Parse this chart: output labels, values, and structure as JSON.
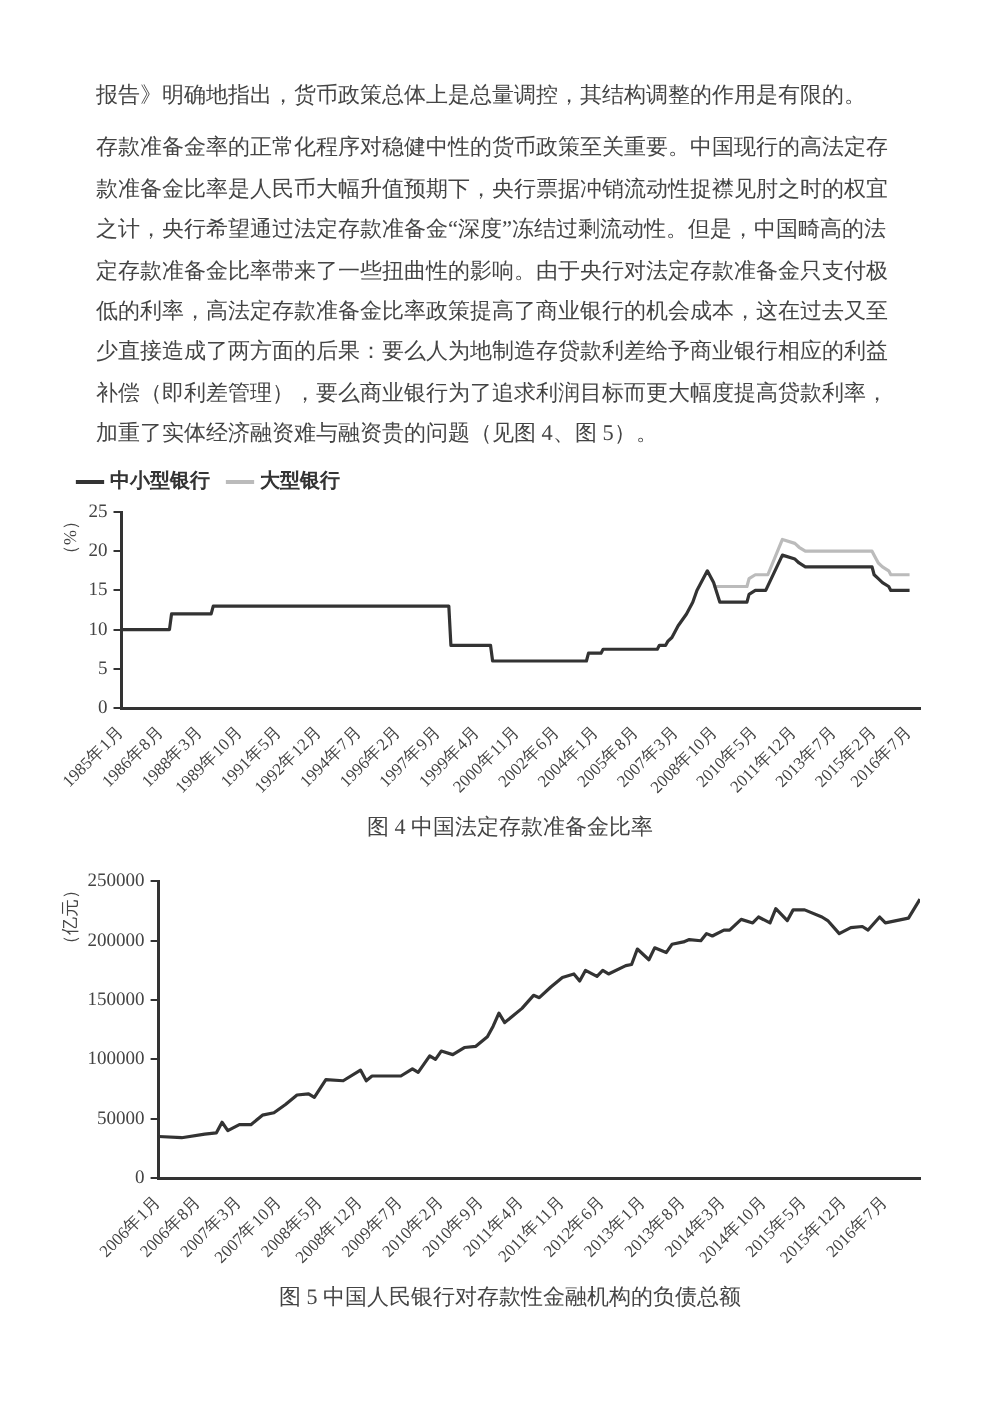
{
  "chart_data": [
    {
      "type": "line",
      "title": "图 4  中国法定存款准备金比率",
      "annotations": [
        "报告》明确地指出，货币政策总体上是总量调控，其结构调整的作用是有限的。",
        "存款准备金率的正常化程序对稳健中性的货币政策至关重要。中国现行的高法定存款准备金比率是人民币大幅升值预期下，央行票据冲销流动性捉襟见肘之时的权宜之计，央行希望通过法定存款准备金“深度”冻结过剩流动性。但是，中国畸高的法定存款准备金比率带来了一些扭曲性的影响。由于央行对法定存款准备金只支付极低的利率，高法定存款准备金比率政策提高了商业银行的机会成本，这在过去又至少直接造成了两方面的后果：要么人为地制造存贷款利差给予商业银行相应的利益补偿（即利差管理），要么商业银行为了追求利润目标而更大幅度提高贷款利率，加重了实体经济融资难与融资贵的问题（见图 4、图 5）。"
      ],
      "ylabel": "（%）",
      "legend": "top left",
      "marker": "none",
      "line_style": "solid",
      "xlim": [
        "1985-01",
        "2016-12"
      ],
      "ylim": [
        0,
        25
      ],
      "yticks": [
        0,
        5,
        10,
        15,
        20,
        25
      ],
      "xticks": [
        {
          "value": "1985-01",
          "label": "1985年1月"
        },
        {
          "value": "1986-08",
          "label": "1986年8月"
        },
        {
          "value": "1988-03",
          "label": "1988年3月"
        },
        {
          "value": "1989-10",
          "label": "1989年10月"
        },
        {
          "value": "1991-05",
          "label": "1991年5月"
        },
        {
          "value": "1992-12",
          "label": "1992年12月"
        },
        {
          "value": "1994-07",
          "label": "1994年7月"
        },
        {
          "value": "1996-02",
          "label": "1996年2月"
        },
        {
          "value": "1997-09",
          "label": "1997年9月"
        },
        {
          "value": "1999-04",
          "label": "1999年4月"
        },
        {
          "value": "2000-11",
          "label": "2000年11月"
        },
        {
          "value": "2002-06",
          "label": "2002年6月"
        },
        {
          "value": "2004-01",
          "label": "2004年1月"
        },
        {
          "value": "2005-08",
          "label": "2005年8月"
        },
        {
          "value": "2007-03",
          "label": "2007年3月"
        },
        {
          "value": "2008-10",
          "label": "2008年10月"
        },
        {
          "value": "2010-05",
          "label": "2010年5月"
        },
        {
          "value": "2011-12",
          "label": "2011年12月"
        },
        {
          "value": "2013-07",
          "label": "2013年7月"
        },
        {
          "value": "2015-02",
          "label": "2015年2月"
        },
        {
          "value": "2016-07",
          "label": "2016年7月"
        }
      ],
      "series": [
        {
          "name": "中小型银行",
          "color": "#333333",
          "x": [
            "1985-01",
            "1986-12",
            "1987-01",
            "1988-08",
            "1988-09",
            "1998-02",
            "1998-03",
            "1999-10",
            "1999-11",
            "2003-08",
            "2003-09",
            "2004-03",
            "2004-04",
            "2006-06",
            "2006-07",
            "2006-10",
            "2006-11",
            "2007-01",
            "2007-04",
            "2007-08",
            "2007-11",
            "2008-01",
            "2008-06",
            "2008-09",
            "2008-12",
            "2010-01",
            "2010-02",
            "2010-05",
            "2010-10",
            "2011-06",
            "2011-12",
            "2012-02",
            "2012-05",
            "2015-01",
            "2015-02",
            "2015-04",
            "2015-06",
            "2015-09",
            "2015-10",
            "2016-07"
          ],
          "values": [
            10,
            10,
            12,
            12,
            13,
            13,
            8,
            8,
            6,
            6,
            7,
            7,
            7.5,
            7.5,
            8,
            8,
            8.5,
            9,
            10.5,
            12,
            13.5,
            15,
            17.5,
            16,
            13.5,
            13.5,
            14.5,
            15,
            15,
            19.5,
            19,
            18.5,
            18,
            18,
            17,
            16.5,
            16,
            15.5,
            15,
            15
          ]
        },
        {
          "name": "大型银行",
          "color": "#bbbbbb",
          "x": [
            "2008-09",
            "2010-01",
            "2010-02",
            "2010-05",
            "2010-11",
            "2011-06",
            "2011-12",
            "2012-02",
            "2012-05",
            "2015-01",
            "2015-02",
            "2015-04",
            "2015-06",
            "2015-09",
            "2015-10",
            "2016-07"
          ],
          "values": [
            15.5,
            15.5,
            16.5,
            17,
            17,
            21.5,
            21,
            20.5,
            20,
            20,
            19.5,
            18.5,
            18,
            17.5,
            17,
            17
          ]
        }
      ]
    },
    {
      "type": "line",
      "title": "图 5  中国人民银行对存款性金融机构的负债总额",
      "ylabel": "（亿元）",
      "marker": "none",
      "line_style": "solid",
      "xlim": [
        "2006-01",
        "2017-01"
      ],
      "ylim": [
        0,
        250000
      ],
      "yticks": [
        0,
        50000,
        100000,
        150000,
        200000,
        250000
      ],
      "xticks": [
        {
          "value": "2006-01",
          "label": "2006年1月"
        },
        {
          "value": "2006-08",
          "label": "2006年8月"
        },
        {
          "value": "2007-03",
          "label": "2007年3月"
        },
        {
          "value": "2007-10",
          "label": "2007年10月"
        },
        {
          "value": "2008-05",
          "label": "2008年5月"
        },
        {
          "value": "2008-12",
          "label": "2008年12月"
        },
        {
          "value": "2009-07",
          "label": "2009年7月"
        },
        {
          "value": "2010-02",
          "label": "2010年2月"
        },
        {
          "value": "2010-09",
          "label": "2010年9月"
        },
        {
          "value": "2011-04",
          "label": "2011年4月"
        },
        {
          "value": "2011-11",
          "label": "2011年11月"
        },
        {
          "value": "2012-06",
          "label": "2012年6月"
        },
        {
          "value": "2013-01",
          "label": "2013年1月"
        },
        {
          "value": "2013-08",
          "label": "2013年8月"
        },
        {
          "value": "2014-03",
          "label": "2014年3月"
        },
        {
          "value": "2014-10",
          "label": "2014年10月"
        },
        {
          "value": "2015-05",
          "label": "2015年5月"
        },
        {
          "value": "2015-12",
          "label": "2015年12月"
        },
        {
          "value": "2016-07",
          "label": "2016年7月"
        }
      ],
      "series": [
        {
          "color": "#333333",
          "x": [
            "2006-01",
            "2006-05",
            "2006-09",
            "2006-11",
            "2006-12",
            "2007-01",
            "2007-03",
            "2007-05",
            "2007-07",
            "2007-09",
            "2007-11",
            "2008-01",
            "2008-03",
            "2008-04",
            "2008-06",
            "2008-09",
            "2008-12",
            "2009-01",
            "2009-02",
            "2009-07",
            "2009-09",
            "2009-10",
            "2009-12",
            "2010-01",
            "2010-02",
            "2010-04",
            "2010-06",
            "2010-08",
            "2010-10",
            "2010-11",
            "2010-12",
            "2011-01",
            "2011-04",
            "2011-06",
            "2011-07",
            "2011-09",
            "2011-11",
            "2012-01",
            "2012-02",
            "2012-03",
            "2012-05",
            "2012-06",
            "2012-07",
            "2012-10",
            "2012-11",
            "2012-12",
            "2013-02",
            "2013-03",
            "2013-05",
            "2013-06",
            "2013-08",
            "2013-09",
            "2013-11",
            "2013-12",
            "2014-01",
            "2014-03",
            "2014-04",
            "2014-06",
            "2014-08",
            "2014-09",
            "2014-11",
            "2014-12",
            "2015-02",
            "2015-03",
            "2015-05",
            "2015-08",
            "2015-09",
            "2015-11",
            "2016-01",
            "2016-03",
            "2016-04",
            "2016-06",
            "2016-07",
            "2016-11",
            "2017-01"
          ],
          "values": [
            35000,
            34000,
            37000,
            38000,
            47000,
            40000,
            45000,
            45000,
            53000,
            55000,
            62000,
            70000,
            71000,
            68000,
            83000,
            82000,
            91000,
            82000,
            86000,
            86000,
            92000,
            89000,
            103000,
            100000,
            107000,
            104000,
            110000,
            111000,
            119000,
            128000,
            139000,
            131000,
            143000,
            154000,
            152000,
            161000,
            169000,
            172000,
            166000,
            175000,
            170000,
            175000,
            172000,
            179000,
            180000,
            193000,
            184000,
            194000,
            190000,
            197000,
            199000,
            201000,
            200000,
            206000,
            204000,
            209000,
            209000,
            218000,
            215000,
            220000,
            215000,
            227000,
            217000,
            226000,
            226000,
            220000,
            217000,
            206000,
            211000,
            212000,
            209000,
            220000,
            215000,
            219000,
            235000
          ]
        }
      ]
    }
  ]
}
